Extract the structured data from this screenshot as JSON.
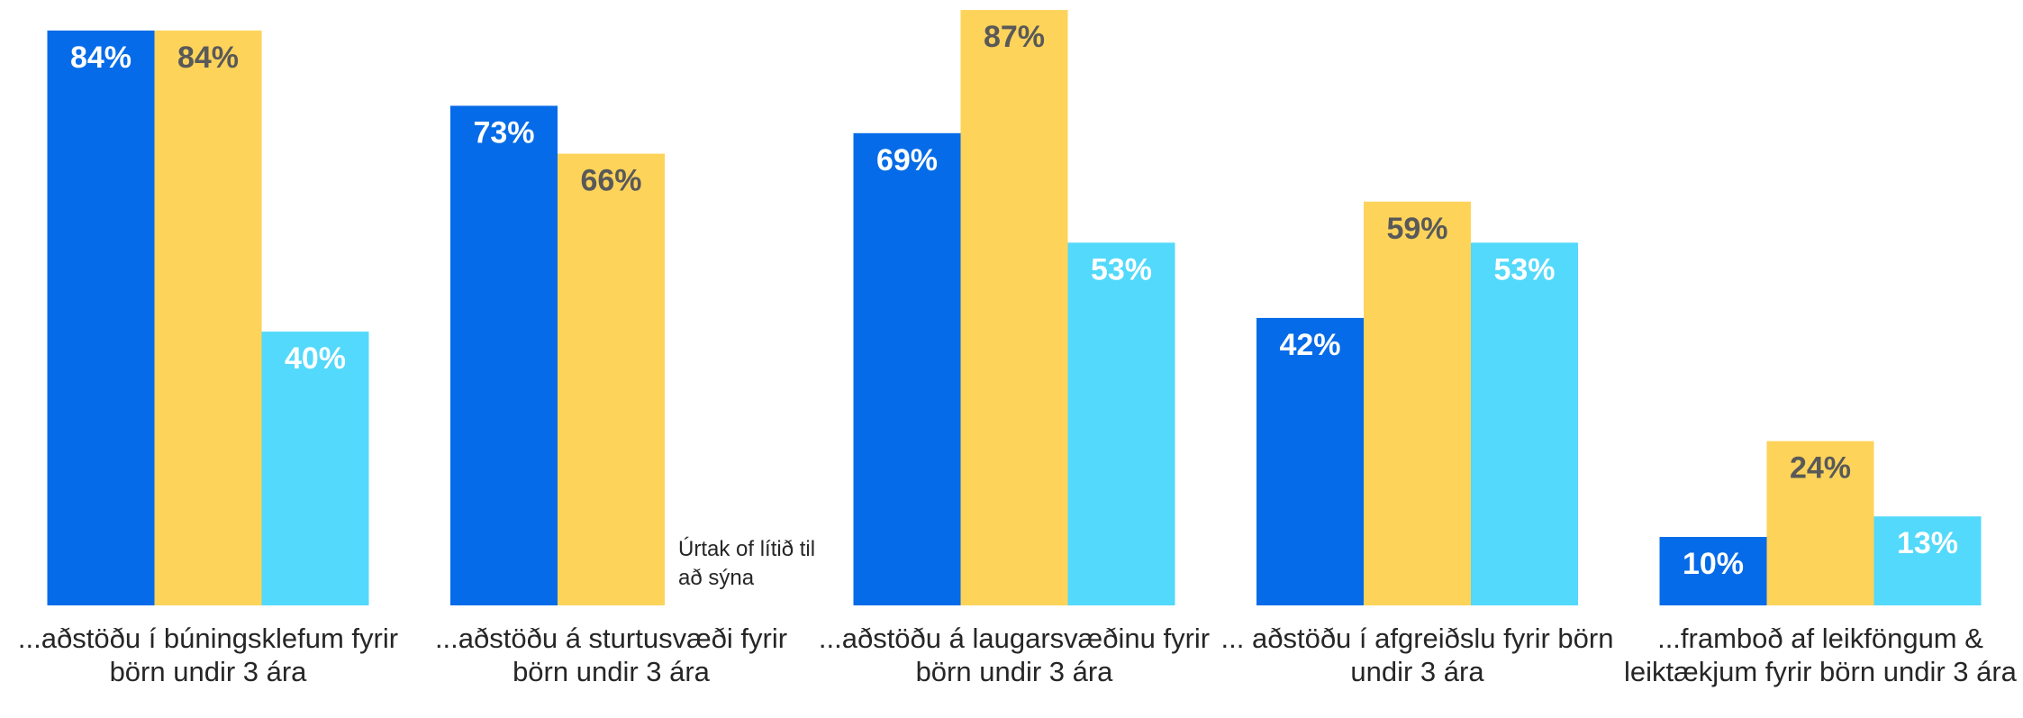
{
  "chart_data": {
    "type": "bar",
    "categories": [
      "...aðstöðu í búningsklefum fyrir börn undir 3 ára",
      "...aðstöðu á sturtusvæði fyrir börn undir 3 ára",
      "...aðstöðu á laugarsvæðinu fyrir börn undir 3 ára",
      "... aðstöðu í afgreiðslu fyrir börn undir 3 ára",
      "...framboð af leikföngum & leiktækjum fyrir börn undir 3 ára"
    ],
    "series": [
      {
        "color": "#056be8",
        "label_color": "#ffffff",
        "values": [
          84,
          73,
          69,
          42,
          10
        ],
        "value_labels": [
          "84%",
          "73%",
          "69%",
          "42%",
          "10%"
        ]
      },
      {
        "color": "#fdd35a",
        "label_color": "#595959",
        "values": [
          84,
          66,
          87,
          59,
          24
        ],
        "value_labels": [
          "84%",
          "66%",
          "87%",
          "59%",
          "24%"
        ]
      },
      {
        "color": "#52d9fb",
        "label_color": "#ffffff",
        "values": [
          40,
          null,
          53,
          53,
          13
        ],
        "value_labels": [
          "40%",
          null,
          "53%",
          "53%",
          "13%"
        ]
      }
    ],
    "annotation": "Úrtak of lítið til að sýna",
    "ylim": [
      0,
      100
    ]
  }
}
